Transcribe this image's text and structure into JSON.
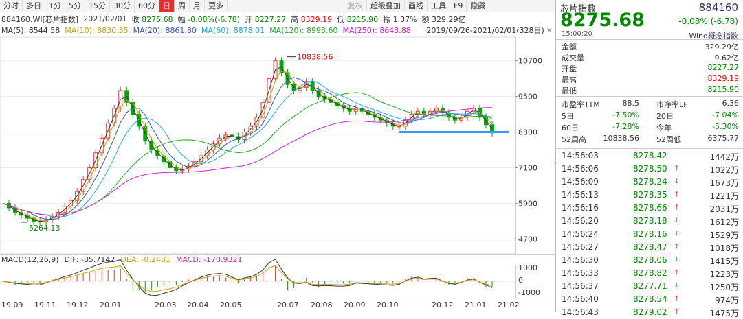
{
  "toolbar": {
    "tabs": [
      "分时",
      "多日",
      "1分",
      "5分",
      "15分",
      "30分",
      "60分",
      "日",
      "周",
      "月",
      "更多"
    ],
    "active_index": 7,
    "right_tabs": [
      "复权",
      "超级叠加",
      "画线",
      "工具",
      "F9",
      "隐藏"
    ],
    "disabled_index": 0
  },
  "info": {
    "code": "884160.WI[芯片指数]",
    "date": "2021/02/01",
    "close_label": "收",
    "close": "8275.68",
    "change_label": "幅",
    "change": "-0.08%(-6.78)",
    "open_label": "开",
    "open": "8227.27",
    "high_label": "高",
    "high": "8329.19",
    "low_label": "低",
    "low": "8215.90",
    "amp_label": "振",
    "amp": "1.37%",
    "amt_label": "额",
    "amt": "329.29亿"
  },
  "ma": [
    {
      "label": "MA(5): 8544.58",
      "color": "#333333"
    },
    {
      "label": "MA(10): 8830.35",
      "color": "#d4a000"
    },
    {
      "label": "MA(20): 8861.80",
      "color": "#3355dd"
    },
    {
      "label": "MA(60): 8878.01",
      "color": "#22aadd"
    },
    {
      "label": "MA(120): 8993.60",
      "color": "#22aa22"
    },
    {
      "label": "MA(250): 8643.88",
      "color": "#cc22cc"
    }
  ],
  "range_label": "2019/09/26-2021/02/01(328日)",
  "chart_data": {
    "type": "candlestick",
    "y_ticks": [
      "10700",
      "9500",
      "8300",
      "7100",
      "5900",
      "4700"
    ],
    "y_tick_values": [
      10700,
      9500,
      8300,
      7100,
      5900,
      4700
    ],
    "ylim": [
      4200,
      11500
    ],
    "x_labels": [
      "19.09",
      "19.11",
      "19.12",
      "20.01",
      "20.03",
      "20.04",
      "20.05",
      "20.07",
      "20.08",
      "20.09",
      "20.10",
      "20.12",
      "21.01",
      "21.02"
    ],
    "annotations": {
      "high": "10838.56",
      "low": "5264.13"
    },
    "support_level": 8300,
    "closes_path": [
      5900,
      5750,
      5600,
      5500,
      5400,
      5300,
      5280,
      5350,
      5450,
      5600,
      5800,
      6000,
      6300,
      6700,
      7100,
      7600,
      8100,
      8600,
      9100,
      9700,
      9300,
      8900,
      8500,
      8000,
      7700,
      7500,
      7300,
      7100,
      7000,
      7050,
      7150,
      7300,
      7500,
      7700,
      7900,
      8100,
      8200,
      8150,
      8050,
      8300,
      8500,
      8800,
      9300,
      10100,
      10700,
      10300,
      9900,
      9700,
      9800,
      10000,
      9700,
      9500,
      9400,
      9300,
      9200,
      9100,
      9000,
      9100,
      9000,
      8900,
      8800,
      8700,
      8600,
      8500,
      8500,
      8700,
      8900,
      9000,
      8900,
      9000,
      9100,
      8950,
      8800,
      8700,
      8800,
      9000,
      9100,
      8800,
      8550,
      8275
    ],
    "macd_label": "MACD(12,26,9)",
    "dif": "DIF: -85.7142",
    "dea": "DEA: -0.2481",
    "macd": "MACD: -170.9321",
    "macd_ticks": [
      "1000",
      "0",
      "-1000"
    ]
  },
  "quote": {
    "name": "芯片指数",
    "code": "884160",
    "price": "8275.68",
    "change": "-0.08% (-6.78)",
    "time": "15:00:20",
    "wind": "Wind概念指数",
    "rows": [
      {
        "k": "金额",
        "v": "329.29亿",
        "c": "#333"
      },
      {
        "k": "成交量",
        "v": "9.62亿",
        "c": "#333"
      },
      {
        "k": "开盘",
        "v": "8227.27",
        "c": "#080"
      },
      {
        "k": "最高",
        "v": "8329.19",
        "c": "#e00"
      },
      {
        "k": "最低",
        "v": "8215.90",
        "c": "#080"
      }
    ],
    "rows2": [
      {
        "a": "市盈率TTM",
        "b": "88.5",
        "c": "市净率LF",
        "d": "6.36",
        "bc": "#333",
        "dc": "#333"
      },
      {
        "a": "5日",
        "b": "-7.50%",
        "c": "20日",
        "d": "-7.04%",
        "bc": "#080",
        "dc": "#080"
      },
      {
        "a": "60日",
        "b": "-7.28%",
        "c": "今年",
        "d": "-5.30%",
        "bc": "#080",
        "dc": "#080"
      },
      {
        "a": "52周高",
        "b": "10838.56",
        "c": "52周低",
        "d": "6375.77",
        "bc": "#333",
        "dc": "#333"
      }
    ],
    "ticks": [
      {
        "t": "14:56:03",
        "p": "8278.42",
        "dir": "",
        "v": "1442万"
      },
      {
        "t": "14:56:06",
        "p": "8278.50",
        "dir": "up",
        "v": "1022万"
      },
      {
        "t": "14:56:09",
        "p": "8278.24",
        "dir": "down",
        "v": "1673万"
      },
      {
        "t": "14:56:13",
        "p": "8278.35",
        "dir": "up",
        "v": "1221万"
      },
      {
        "t": "14:56:16",
        "p": "8278.66",
        "dir": "up",
        "v": "2031万"
      },
      {
        "t": "14:56:20",
        "p": "8278.18",
        "dir": "down",
        "v": "1612万"
      },
      {
        "t": "14:56:24",
        "p": "8278.16",
        "dir": "down",
        "v": "1529万"
      },
      {
        "t": "14:56:27",
        "p": "8278.47",
        "dir": "up",
        "v": "1018万"
      },
      {
        "t": "14:56:30",
        "p": "8278.06",
        "dir": "down",
        "v": "1415万"
      },
      {
        "t": "14:56:33",
        "p": "8278.82",
        "dir": "up",
        "v": "1223万"
      },
      {
        "t": "14:56:37",
        "p": "8277.71",
        "dir": "down",
        "v": "1250万"
      },
      {
        "t": "14:56:40",
        "p": "8278.54",
        "dir": "up",
        "v": "974万"
      },
      {
        "t": "14:56:43",
        "p": "8279.02",
        "dir": "up",
        "v": "1475万"
      }
    ],
    "up_arrow": "🡑",
    "down_arrow": "🡓"
  },
  "collapse_icon": "›"
}
